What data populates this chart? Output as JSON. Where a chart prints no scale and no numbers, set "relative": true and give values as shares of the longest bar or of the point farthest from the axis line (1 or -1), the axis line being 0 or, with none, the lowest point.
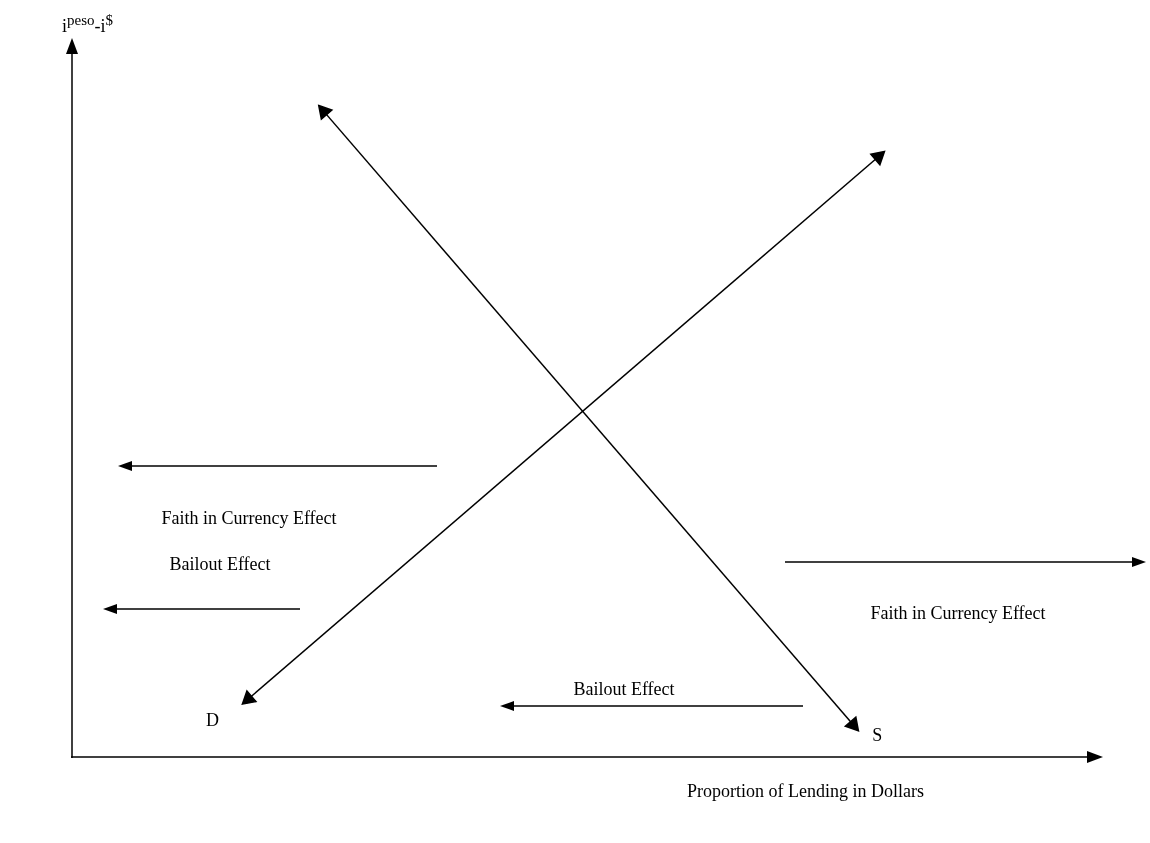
{
  "chart_data": {
    "type": "line",
    "relative": true,
    "xlabel": "Proportion of Lending in Dollars",
    "ylabel": "i$^{peso}$-i$^{$}$",
    "categories": [
      null,
      null,
      null,
      null,
      null,
      null,
      null,
      null,
      null,
      null,
      null,
      null,
      null,
      null,
      null,
      null,
      null,
      null,
      null,
      null,
      null,
      null,
      null,
      null,
      null,
      null,
      null,
      null,
      null,
      null,
      null,
      null,
      null,
      null,
      null,
      null,
      null,
      null,
      null,
      null,
      null
    ],
    "series": [
      {
        "name": "D",
        "color": "#000000",
        "values": [
          null,
          null,
          null,
          null,
          null,
          null,
          null,
          0.09,
          null,
          null,
          null,
          null,
          null,
          null,
          null,
          null,
          null,
          null,
          null,
          null,
          null,
          null,
          null,
          null,
          null,
          null,
          null,
          null,
          null,
          null,
          null,
          null,
          0.93,
          null,
          null,
          null,
          null,
          null,
          null,
          null,
          null
        ]
      },
      {
        "name": "S",
        "color": "#000000",
        "values": [
          null,
          null,
          null,
          null,
          null,
          null,
          null,
          null,
          null,
          null,
          1,
          null,
          null,
          null,
          null,
          null,
          null,
          null,
          null,
          null,
          null,
          null,
          null,
          null,
          null,
          null,
          null,
          null,
          null,
          null,
          null,
          0.05,
          null,
          null,
          null,
          null,
          null,
          null,
          null,
          null,
          null
        ]
      }
    ],
    "marker": "triangle",
    "line_style": "solid",
    "legend": false,
    "annotations": [
      "Faith in Currency Effect",
      "Bailout Effect",
      "Faith in Currency Effect",
      "Bailout Effect"
    ]
  }
}
